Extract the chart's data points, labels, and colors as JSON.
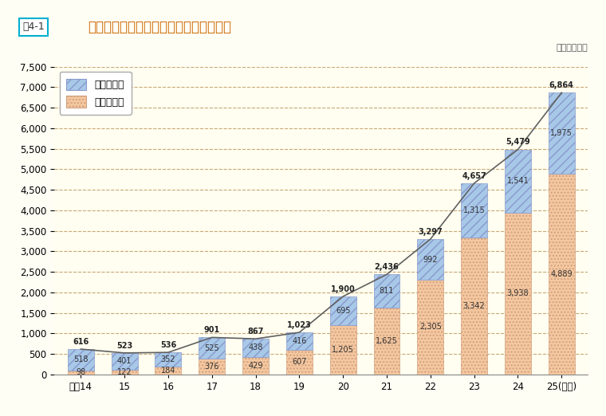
{
  "years": [
    "平成14",
    "15",
    "16",
    "17",
    "18",
    "19",
    "20",
    "21",
    "22",
    "23",
    "24",
    "25(年度)"
  ],
  "fulltime": [
    518,
    401,
    352,
    525,
    438,
    416,
    695,
    811,
    992,
    1315,
    1541,
    1975
  ],
  "parttime": [
    98,
    122,
    184,
    376,
    429,
    607,
    1205,
    1625,
    2305,
    3342,
    3938,
    4889
  ],
  "total": [
    616,
    523,
    536,
    901,
    867,
    1023,
    1900,
    2436,
    3297,
    4657,
    5479,
    6864
  ],
  "fulltime_labels": [
    "518",
    "401",
    "352",
    "525",
    "438",
    "416",
    "695",
    "811",
    "992",
    "1,315",
    "1,541",
    "1,975"
  ],
  "parttime_labels": [
    "98",
    "122",
    "184",
    "376",
    "429",
    "607",
    "1,205",
    "1,625",
    "2,305",
    "3,342",
    "3,938",
    "4,889"
  ],
  "total_labels": [
    "616",
    "523",
    "536",
    "901",
    "867",
    "1,023",
    "1,900",
    "2,436",
    "3,297",
    "4,657",
    "5,479",
    "6,864"
  ],
  "fulltime_color": "#a8c8e8",
  "parttime_color": "#f5c8a0",
  "fulltime_hatch": "///",
  "parttime_hatch": "....",
  "fig_bg_color": "#fffef5",
  "plot_area_color": "#fffef0",
  "title": "年度別再任用職員数（給与法適用職員）",
  "fig_label": "围4-1",
  "unit_label": "（単位：人）",
  "legend_fulltime": "フルタイム",
  "legend_parttime": "短時間勤務",
  "ylim": [
    0,
    7500
  ],
  "yticks": [
    0,
    500,
    1000,
    1500,
    2000,
    2500,
    3000,
    3500,
    4000,
    4500,
    5000,
    5500,
    6000,
    6500,
    7000,
    7500
  ],
  "grid_color": "#c8a878",
  "line_color": "#606060",
  "bar_width": 0.6,
  "title_color": "#cc6600",
  "label_box_color": "#00b0d0"
}
